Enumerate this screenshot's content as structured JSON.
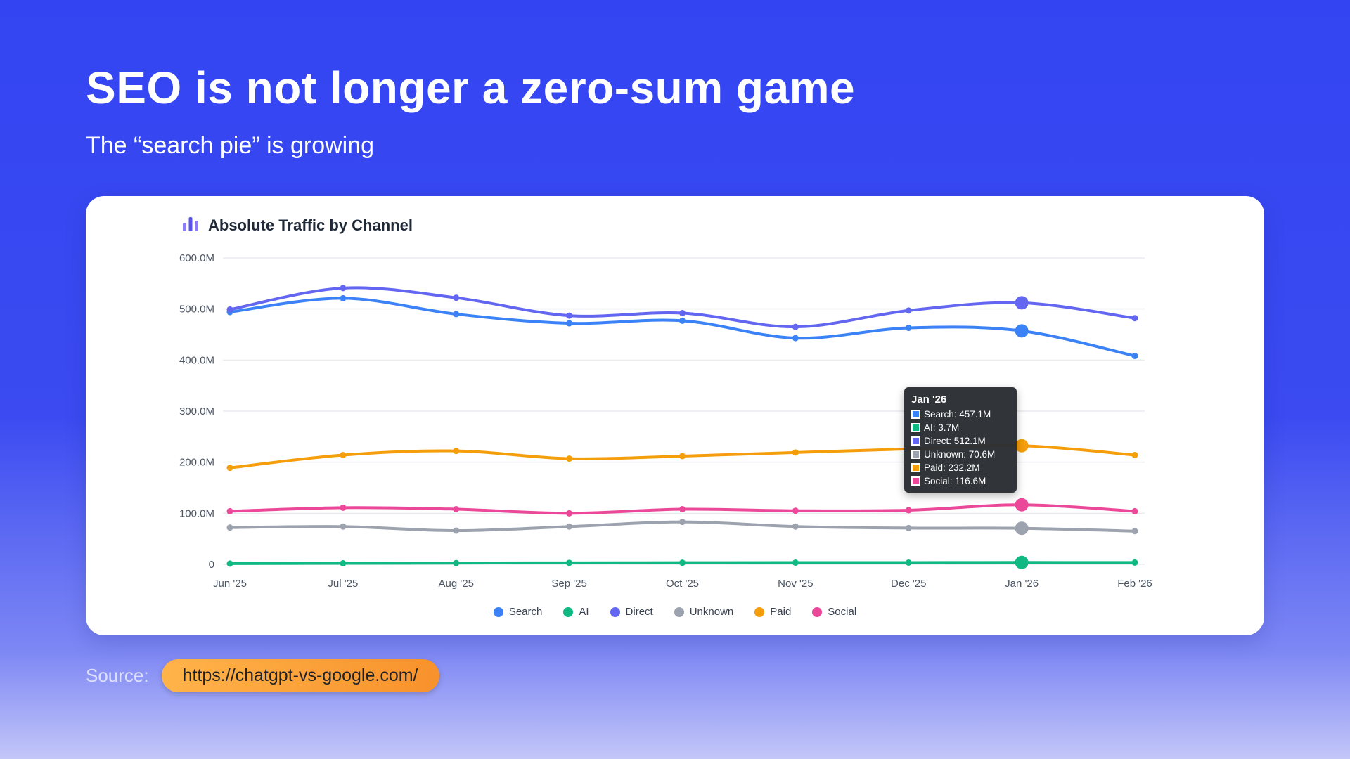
{
  "slide": {
    "title": "SEO is not longer a zero-sum game",
    "subtitle": "The “search pie” is growing",
    "source_label": "Source:",
    "source_url": "https://chatgpt-vs-google.com/"
  },
  "chart_data": {
    "type": "line",
    "title": "Absolute Traffic by Channel",
    "x": [
      "Jun '25",
      "Jul '25",
      "Aug '25",
      "Sep '25",
      "Oct '25",
      "Nov '25",
      "Dec '25",
      "Jan '26",
      "Feb '26"
    ],
    "ylim": [
      0,
      600
    ],
    "unit": "M",
    "grid": true,
    "legend_position": "bottom",
    "y_ticks": [
      {
        "value": 0,
        "label": "0"
      },
      {
        "value": 100,
        "label": "100.0M"
      },
      {
        "value": 200,
        "label": "200.0M"
      },
      {
        "value": 300,
        "label": "300.0M"
      },
      {
        "value": 400,
        "label": "400.0M"
      },
      {
        "value": 500,
        "label": "500.0M"
      },
      {
        "value": 600,
        "label": "600.0M"
      }
    ],
    "highlight_x": "Jan '26",
    "highlight_index": 7,
    "series": [
      {
        "name": "Search",
        "color": "#3b82f6",
        "values": [
          494,
          521,
          490,
          472,
          477,
          443,
          463,
          457.1,
          408
        ]
      },
      {
        "name": "AI",
        "color": "#10b981",
        "values": [
          1.5,
          2,
          2.5,
          3,
          3.2,
          3.4,
          3.5,
          3.7,
          3.6
        ]
      },
      {
        "name": "Direct",
        "color": "#6366f1",
        "values": [
          499,
          541,
          522,
          487,
          492,
          465,
          497,
          512.1,
          482
        ]
      },
      {
        "name": "Unknown",
        "color": "#9ca3af",
        "values": [
          72,
          74,
          66,
          74,
          83,
          74,
          71,
          70.6,
          65
        ]
      },
      {
        "name": "Paid",
        "color": "#f59e0b",
        "values": [
          189,
          214,
          222,
          207,
          212,
          219,
          226,
          232.2,
          214
        ]
      },
      {
        "name": "Social",
        "color": "#ec4899",
        "values": [
          104,
          111,
          108,
          100,
          108,
          105,
          106,
          116.6,
          104
        ]
      }
    ],
    "tooltip": {
      "title": "Jan '26",
      "items": [
        {
          "label": "Search",
          "value": "457.1M",
          "color": "#3b82f6"
        },
        {
          "label": "AI",
          "value": "3.7M",
          "color": "#10b981"
        },
        {
          "label": "Direct",
          "value": "512.1M",
          "color": "#6366f1"
        },
        {
          "label": "Unknown",
          "value": "70.6M",
          "color": "#9ca3af"
        },
        {
          "label": "Paid",
          "value": "232.2M",
          "color": "#f59e0b"
        },
        {
          "label": "Social",
          "value": "116.6M",
          "color": "#ec4899"
        }
      ]
    }
  }
}
